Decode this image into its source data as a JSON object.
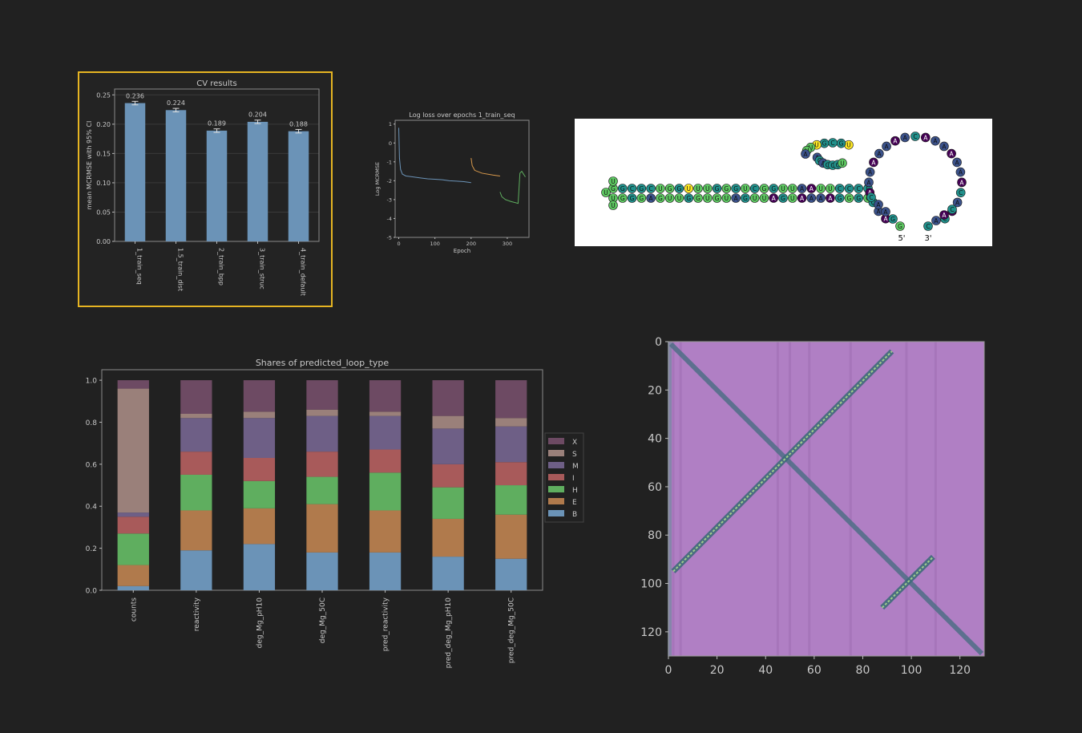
{
  "charts": {
    "cv": {
      "type": "bar",
      "title": "CV results",
      "ylabel": "mean MCRMSE with 95% CI",
      "categories": [
        "1_train_seq",
        "1.5_train_dist",
        "2_train_bpp",
        "3_train_struc",
        "4_train_default"
      ],
      "values": [
        0.236,
        0.224,
        0.189,
        0.204,
        0.188
      ],
      "value_labels": [
        "0.236",
        "0.224",
        "0.189",
        "0.204",
        "0.188"
      ],
      "errors": [
        0.003,
        0.003,
        0.003,
        0.003,
        0.003
      ],
      "ylim": [
        0,
        0.26
      ],
      "yticks": [
        "0.00",
        "0.05",
        "0.10",
        "0.15",
        "0.20",
        "0.25"
      ],
      "bar_color": "#6b93b7",
      "selected_border": "#e6b422"
    },
    "loss": {
      "type": "line",
      "title": "Log loss over epochs 1_train_seq",
      "xlabel": "Epoch",
      "ylabel": "Log MCRMSE",
      "xlim": [
        -10,
        360
      ],
      "ylim": [
        -5,
        1.2
      ],
      "xticks": [
        "0",
        "100",
        "200",
        "300"
      ],
      "yticks": [
        "1",
        "0",
        "-1",
        "-2",
        "-3",
        "-4",
        "-5"
      ],
      "series": [
        {
          "color": "#6b93b7",
          "x": [
            0,
            2,
            5,
            10,
            20,
            40,
            60,
            80,
            100,
            120,
            140,
            160,
            180,
            200
          ],
          "y": [
            0.8,
            -0.8,
            -1.4,
            -1.65,
            -1.75,
            -1.8,
            -1.85,
            -1.9,
            -1.92,
            -1.95,
            -2.0,
            -2.02,
            -2.05,
            -2.1
          ]
        },
        {
          "color": "#d99a4c",
          "x": [
            200,
            203,
            210,
            230,
            260,
            280
          ],
          "y": [
            -0.8,
            -1.2,
            -1.45,
            -1.6,
            -1.7,
            -1.75
          ]
        },
        {
          "color": "#5fae5f",
          "x": [
            280,
            285,
            295,
            310,
            330,
            335,
            340,
            350
          ],
          "y": [
            -2.6,
            -2.85,
            -3.0,
            -3.1,
            -3.2,
            -1.6,
            -1.5,
            -1.8
          ]
        }
      ]
    },
    "shares": {
      "type": "bar",
      "title": "Shares of predicted_loop_type",
      "categories": [
        "counts",
        "reactivity",
        "deg_Mg_pH10",
        "deg_Mg_50C",
        "pred_reactivity",
        "pred_deg_Mg_pH10",
        "pred_deg_Mg_50C"
      ],
      "ylim": [
        0,
        1.05
      ],
      "yticks": [
        "0.0",
        "0.2",
        "0.4",
        "0.6",
        "0.8",
        "1.0"
      ],
      "legend_position": "right",
      "series": [
        {
          "name": "B",
          "color": "#6b93b7",
          "values": [
            0.02,
            0.19,
            0.22,
            0.18,
            0.18,
            0.16,
            0.15
          ]
        },
        {
          "name": "E",
          "color": "#b07a4c",
          "values": [
            0.1,
            0.19,
            0.17,
            0.23,
            0.2,
            0.18,
            0.21
          ]
        },
        {
          "name": "H",
          "color": "#5fae5f",
          "values": [
            0.15,
            0.17,
            0.13,
            0.13,
            0.18,
            0.15,
            0.14
          ]
        },
        {
          "name": "I",
          "color": "#a85a5a",
          "values": [
            0.08,
            0.11,
            0.11,
            0.12,
            0.11,
            0.11,
            0.11
          ]
        },
        {
          "name": "M",
          "color": "#6e5f86",
          "values": [
            0.02,
            0.16,
            0.19,
            0.17,
            0.16,
            0.17,
            0.17
          ]
        },
        {
          "name": "S",
          "color": "#9a807a",
          "values": [
            0.59,
            0.02,
            0.03,
            0.03,
            0.02,
            0.06,
            0.04
          ]
        },
        {
          "name": "X",
          "color": "#6d4a63",
          "values": [
            0.04,
            0.16,
            0.15,
            0.14,
            0.15,
            0.17,
            0.18
          ]
        }
      ]
    },
    "heatmap": {
      "type": "heatmap",
      "xlim": [
        0,
        130
      ],
      "ylim": [
        0,
        130
      ],
      "xticks": [
        "0",
        "20",
        "40",
        "60",
        "80",
        "100",
        "120"
      ],
      "yticks": [
        "0",
        "20",
        "40",
        "60",
        "80",
        "100",
        "120"
      ],
      "bg_color": "#b07fc4",
      "diagonal_color": "#4f6e86",
      "stem_color": "#9fcf8a"
    }
  },
  "rna": {
    "five_prime": "5'",
    "three_prime": "3'",
    "stem_top": [
      "G",
      "G",
      "C",
      "G",
      "C",
      "U",
      "G",
      "G",
      "U",
      "U",
      "U",
      "G",
      "G",
      "G",
      "U",
      "C",
      "G",
      "G",
      "U",
      "U",
      "A",
      "A",
      "U",
      "U",
      "C",
      "C",
      "C",
      "C"
    ],
    "stem_bottom": [
      "U",
      "G",
      "G",
      "G",
      "A",
      "G",
      "U",
      "U",
      "G",
      "G",
      "U",
      "G",
      "U",
      "A",
      "G",
      "U",
      "U",
      "A",
      "G",
      "U",
      "A",
      "A",
      "A",
      "A",
      "G",
      "G",
      "G",
      "G"
    ],
    "hairpin": [
      "U",
      "G",
      "C",
      "G",
      "U",
      "U",
      "U",
      "A",
      "A",
      "C",
      "A",
      "G",
      "C",
      "C",
      "U"
    ],
    "loop": [
      "A",
      "A",
      "C",
      "A",
      "A",
      "A",
      "A",
      "A",
      "A",
      "A",
      "A",
      "C",
      "A",
      "A",
      "A",
      "A",
      "A",
      "A",
      "A",
      "C",
      "A",
      "A",
      "C"
    ],
    "tail5": [
      "C",
      "A",
      "A",
      "G",
      "G"
    ],
    "tail3": [
      "C",
      "A",
      "A",
      "C"
    ],
    "palette": [
      "#440154",
      "#3b528b",
      "#21918c",
      "#5ec962",
      "#fde725"
    ]
  }
}
